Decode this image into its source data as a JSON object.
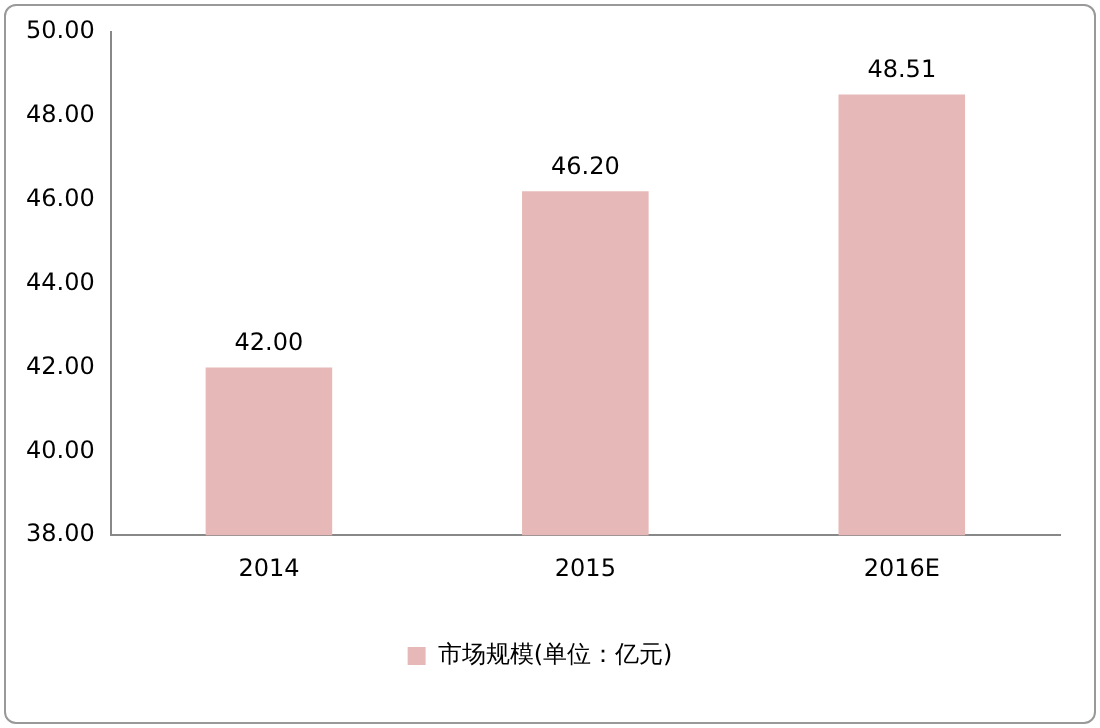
{
  "chart_data": {
    "type": "bar",
    "categories": [
      "2014",
      "2015",
      "2016E"
    ],
    "series": [
      {
        "name": "市场规模(单位：亿元)",
        "color": "#e6b9b8",
        "values": [
          42.0,
          46.2,
          48.51
        ],
        "value_labels": [
          "42.00",
          "46.20",
          "48.51"
        ]
      }
    ],
    "ylim": [
      38,
      50
    ],
    "yticks": [
      {
        "value": 38,
        "label": "38.00"
      },
      {
        "value": 40,
        "label": "40.00"
      },
      {
        "value": 42,
        "label": "42.00"
      },
      {
        "value": 44,
        "label": "44.00"
      },
      {
        "value": 46,
        "label": "46.00"
      },
      {
        "value": 48,
        "label": "48.00"
      },
      {
        "value": 50,
        "label": "50.00"
      }
    ],
    "grid": false,
    "legend": "bottom"
  }
}
